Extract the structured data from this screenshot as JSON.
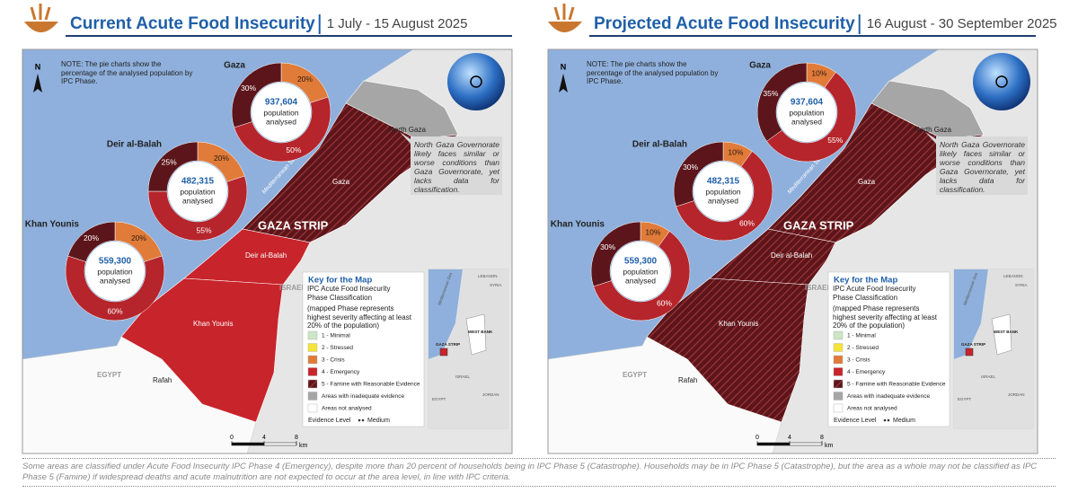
{
  "panels": [
    {
      "title": "Current Acute Food Insecurity",
      "period": "1 July - 15 August 2025",
      "pies": [
        {
          "name": "Gaza",
          "population": "937,604",
          "label_lines": [
            "population",
            "analysed"
          ],
          "values": [
            20,
            50,
            30
          ],
          "value_labels": [
            "20%",
            "50%",
            "30%"
          ],
          "colors": [
            "#e07b39",
            "#b5252b",
            "#5c161b"
          ]
        },
        {
          "name": "Deir al-Balah",
          "population": "482,315",
          "label_lines": [
            "population",
            "analysed"
          ],
          "values": [
            20,
            55,
            25
          ],
          "value_labels": [
            "20%",
            "55%",
            "25%"
          ],
          "colors": [
            "#e07b39",
            "#b5252b",
            "#5c161b"
          ]
        },
        {
          "name": "Khan Younis",
          "population": "559,300",
          "label_lines": [
            "population",
            "analysed"
          ],
          "values": [
            20,
            60,
            20
          ],
          "value_labels": [
            "20%",
            "60%",
            "20%"
          ],
          "colors": [
            "#e07b39",
            "#b5252b",
            "#5c161b"
          ]
        }
      ]
    },
    {
      "title": "Projected Acute Food Insecurity",
      "period": "16 August - 30 September 2025",
      "pies": [
        {
          "name": "Gaza",
          "population": "937,604",
          "label_lines": [
            "population",
            "analysed"
          ],
          "values": [
            10,
            55,
            35
          ],
          "value_labels": [
            "10%",
            "55%",
            "35%"
          ],
          "colors": [
            "#e07b39",
            "#b5252b",
            "#5c161b"
          ]
        },
        {
          "name": "Deir al-Balah",
          "population": "482,315",
          "label_lines": [
            "population",
            "analysed"
          ],
          "values": [
            10,
            60,
            30
          ],
          "value_labels": [
            "10%",
            "60%",
            "30%"
          ],
          "colors": [
            "#e07b39",
            "#b5252b",
            "#5c161b"
          ]
        },
        {
          "name": "Khan Younis",
          "population": "559,300",
          "label_lines": [
            "population",
            "analysed"
          ],
          "values": [
            10,
            60,
            30
          ],
          "value_labels": [
            "10%",
            "60%",
            "30%"
          ],
          "colors": [
            "#e07b39",
            "#b5252b",
            "#5c161b"
          ]
        }
      ]
    }
  ],
  "note": "NOTE: The pie charts show the percentage of the analysed population by IPC Phase.",
  "north_arrow": "N",
  "callout": "North Gaza Governorate likely faces similar or worse conditions than Gaza Governorate, yet lacks data for classification.",
  "map_labels": {
    "north_gaza": "North Gaza",
    "gaza": "Gaza",
    "gaza_strip": "GAZA STRIP",
    "deir_al_balah": "Deir al-Balah",
    "khan_younis": "Khan Younis",
    "rafah": "Rafah",
    "israel": "ISRAEL",
    "egypt": "EGYPT",
    "sea": "Mediterranean Sea"
  },
  "inset_labels": {
    "sea": "Mediterranean Sea",
    "west_bank": "WEST BANK",
    "gaza_strip": "GAZA STRIP",
    "israel": "ISRAEL",
    "egypt": "EGYPT",
    "jordan": "JORDAN",
    "syria": "SYRIA",
    "lebanon": "LEBANON"
  },
  "legend": {
    "title": "Key for the Map",
    "subtitle": "IPC Acute Food Insecurity Phase Classification",
    "note": "(mapped Phase represents highest severity affecting at least 20% of the population)",
    "items": [
      {
        "label": "1 - Minimal",
        "color": "#cde6c6"
      },
      {
        "label": "2 - Stressed",
        "color": "#f6e33a"
      },
      {
        "label": "3 - Crisis",
        "color": "#e07b39"
      },
      {
        "label": "4 - Emergency",
        "color": "#c8242b"
      },
      {
        "label": "5 - Famine with Reasonable Evidence",
        "color": "#5c161b",
        "hatched": true
      },
      {
        "label": "Areas with inadequate evidence",
        "color": "#a6a6a6"
      },
      {
        "label": "Areas not analysed",
        "color": "#ffffff"
      }
    ],
    "evidence_title": "Evidence Level",
    "evidence_value": "Medium"
  },
  "scale": {
    "ticks": [
      0,
      4,
      8
    ],
    "unit": "km"
  },
  "footnote": "Some areas are classified under Acute Food Insecurity IPC Phase 4 (Emergency), despite more than 20 percent of households being in IPC Phase 5 (Catastrophe). Households may be in IPC Phase 5 (Catastrophe), but the area as a whole may not be classified as IPC Phase 5 (Famine) if widespread deaths and acute malnutrition are not expected to occur at the area level, in line with IPC criteria."
}
